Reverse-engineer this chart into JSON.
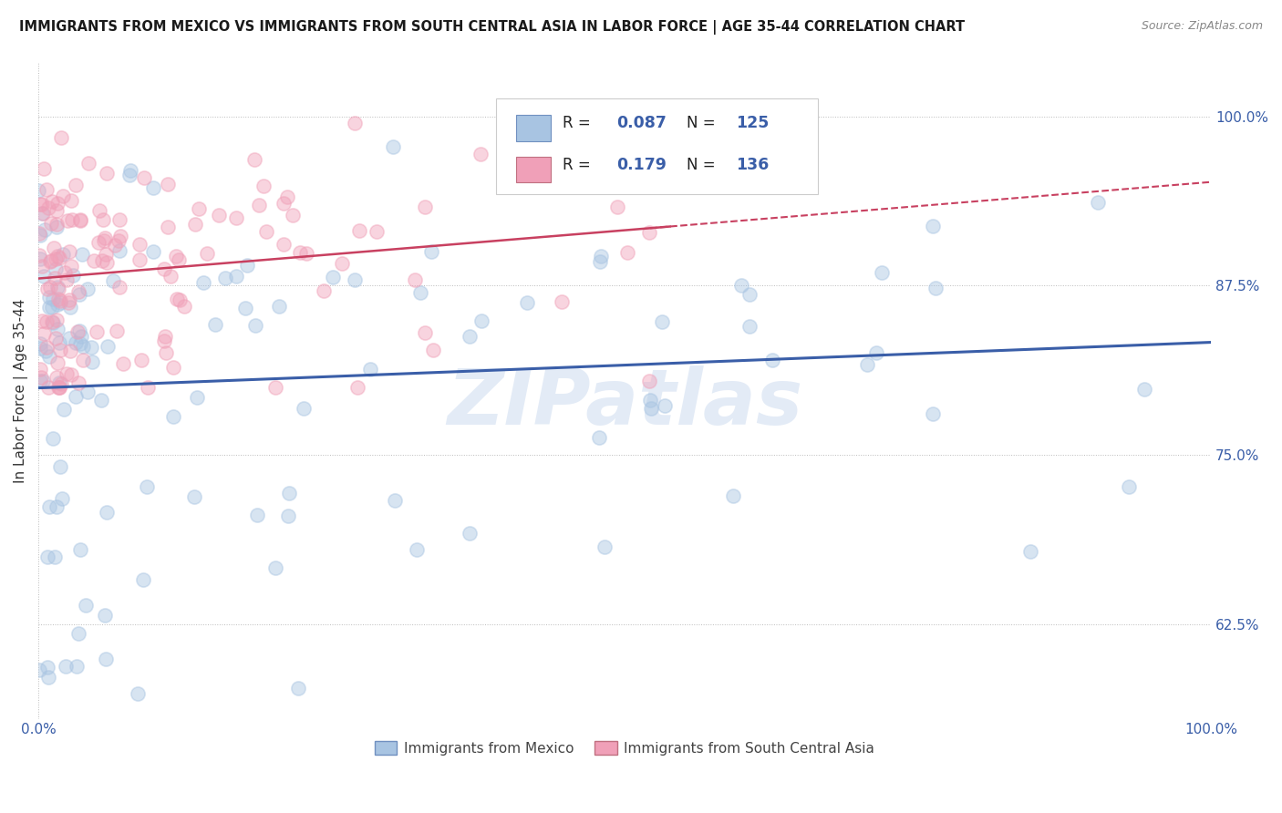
{
  "title": "IMMIGRANTS FROM MEXICO VS IMMIGRANTS FROM SOUTH CENTRAL ASIA IN LABOR FORCE | AGE 35-44 CORRELATION CHART",
  "source": "Source: ZipAtlas.com",
  "ylabel": "In Labor Force | Age 35-44",
  "xlim": [
    0.0,
    1.0
  ],
  "ylim": [
    0.555,
    1.04
  ],
  "yticks": [
    0.625,
    0.75,
    0.875,
    1.0
  ],
  "ytick_labels": [
    "62.5%",
    "75.0%",
    "87.5%",
    "100.0%"
  ],
  "xticks": [
    0.0,
    1.0
  ],
  "xtick_labels": [
    "0.0%",
    "100.0%"
  ],
  "color_mexico": "#a8c4e2",
  "color_asia": "#f0a0b8",
  "color_trend_mexico": "#3a5ea8",
  "color_trend_asia": "#c84060",
  "color_text_blue": "#3a5ea8",
  "background_color": "#ffffff",
  "watermark": "ZIPatlas",
  "R_mexico": 0.087,
  "R_asia": 0.179,
  "N_mexico": 125,
  "N_asia": 136,
  "scatter_size": 120,
  "scatter_alpha": 0.45,
  "scatter_linewidth": 1.2
}
